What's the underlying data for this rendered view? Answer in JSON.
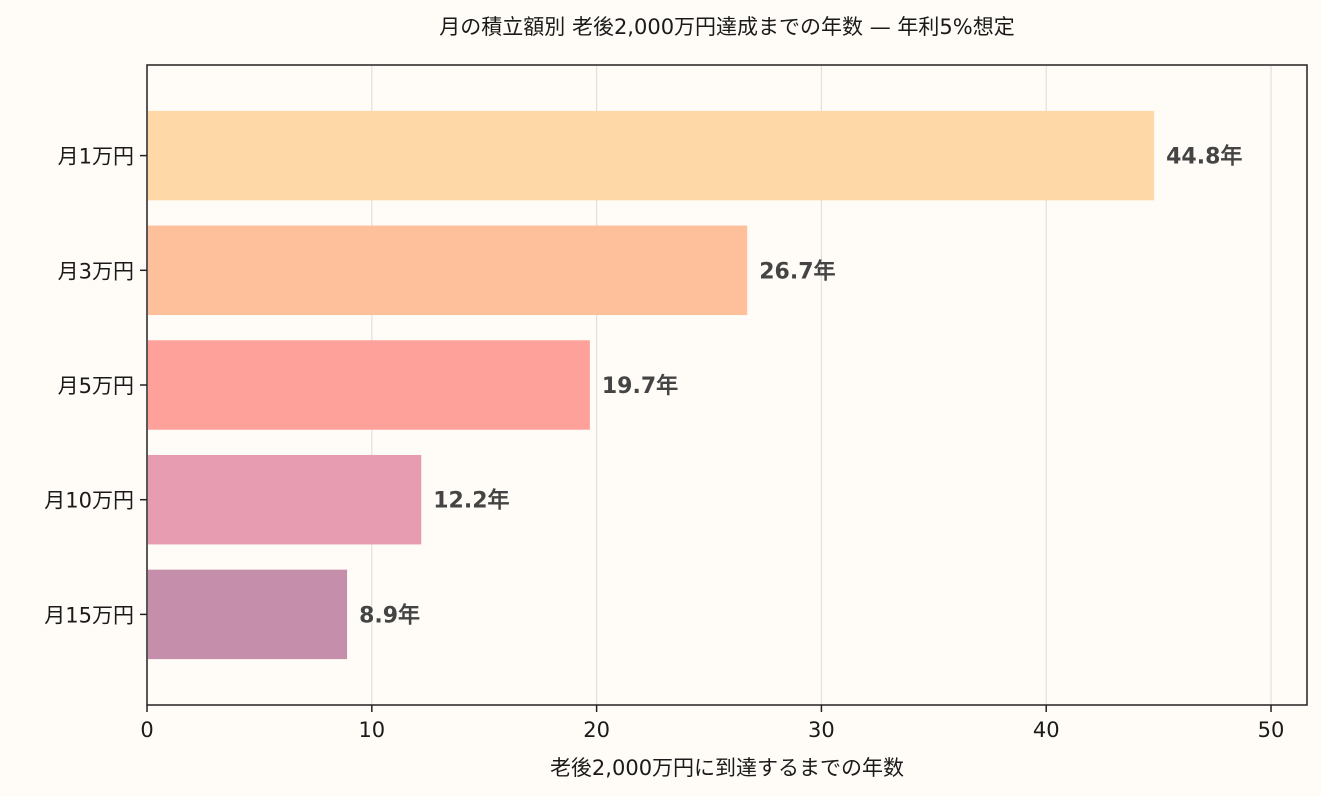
{
  "chart_data": {
    "type": "bar",
    "orientation": "horizontal",
    "title": "月の積立額別 老後2,000万円達成までの年数 — 年利5%想定",
    "xlabel": "老後2,000万円に到達するまでの年数",
    "ylabel": "",
    "categories": [
      "月1万円",
      "月3万円",
      "月5万円",
      "月10万円",
      "月15万円"
    ],
    "values": [
      44.8,
      26.7,
      19.7,
      12.2,
      8.9
    ],
    "data_labels": [
      "44.8年",
      "26.7年",
      "19.7年",
      "12.2年",
      "8.9年"
    ],
    "xlim": [
      0,
      51.6
    ],
    "xticks": [
      0,
      10,
      20,
      30,
      40,
      50
    ],
    "xtick_labels": [
      "0",
      "10",
      "20",
      "30",
      "40",
      "50"
    ],
    "grid": "vertical",
    "colors": [
      "#fed8a6",
      "#fec09a",
      "#fda19a",
      "#e89cb2",
      "#c58fac"
    ],
    "background": "#fffcf7"
  }
}
